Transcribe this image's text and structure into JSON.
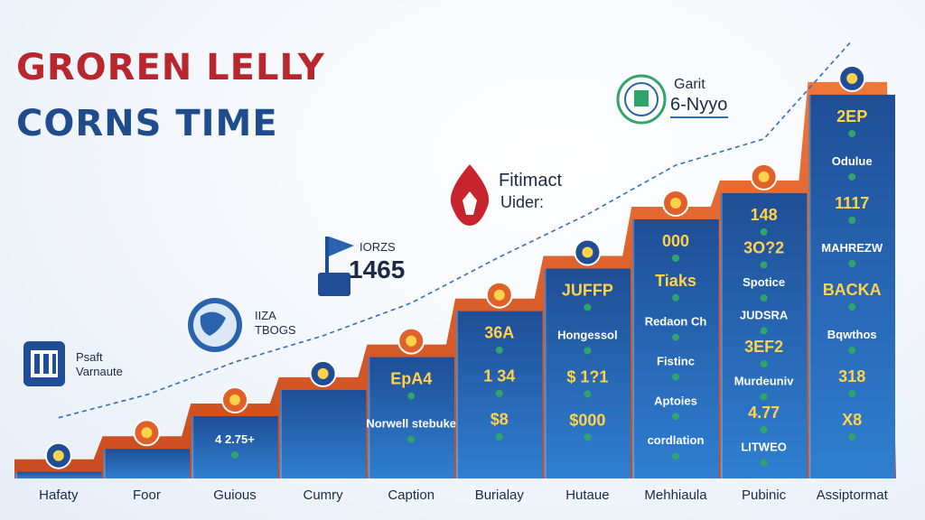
{
  "title": {
    "line1": "GRORЕN LELLY",
    "line2": "CORNS TIME"
  },
  "chart_data": {
    "type": "bar",
    "categories": [
      "Hafaty",
      "Foor",
      "Guious",
      "Cumry",
      "Caption",
      "Burialay",
      "Hutaue",
      "Mehhiaula",
      "Pubinic",
      "Assiptormat"
    ],
    "values": [
      2,
      9,
      19,
      27,
      37,
      51,
      64,
      79,
      87,
      117
    ],
    "ylim": [
      0,
      120
    ],
    "grid": false,
    "colors": {
      "bar_top": "#1f4e96",
      "bar_bottom": "#2f7fd0",
      "ridge": "#e0622a",
      "trend": "#2f6fbf",
      "dot": "#2fa56b",
      "value_text": "#ffd24a"
    },
    "bar_labels": [
      [],
      [],
      [
        "4 2.75+"
      ],
      [],
      [
        "EpA4",
        "Norwell stebuke"
      ],
      [
        "36A",
        "1 34",
        "$8"
      ],
      [
        "JUFFP",
        "Hongessol",
        "$ 1?1",
        "$000"
      ],
      [
        "000",
        "Tiaks",
        "Redaon Ch",
        "Fistinc",
        "Aptoies",
        "cordlation"
      ],
      [
        "148",
        "3O?2",
        "Spotice",
        "JUDSRA",
        "3EF2",
        "Murdeuniv",
        "4.77",
        "LITWEO"
      ],
      [
        "2EP",
        "Odulue",
        "1117",
        "MAHREZW",
        "BACKA",
        "Bqwthos",
        "318",
        "X8"
      ]
    ],
    "annotations": [
      {
        "title": "Psaft",
        "subtitle": "Varnaute"
      },
      {
        "title": "IIZA",
        "subtitle": "TBOGS"
      },
      {
        "title": "IORZS",
        "subtitle": "1465"
      },
      {
        "title": "Fitimact",
        "subtitle": "Uider:"
      },
      {
        "title": "Garit",
        "subtitle": "6-Nyyo"
      }
    ]
  }
}
